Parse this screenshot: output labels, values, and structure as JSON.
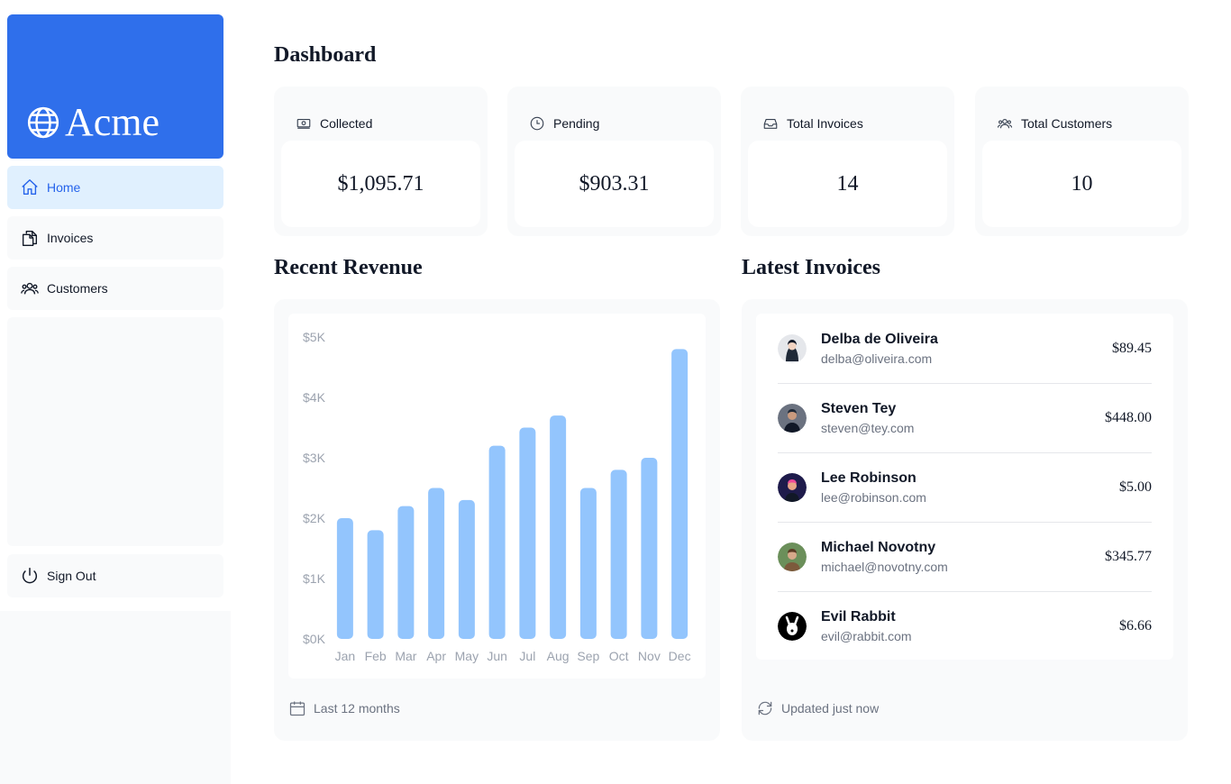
{
  "brand": {
    "name": "Acme",
    "color": "#2f6feb"
  },
  "nav": {
    "items": [
      {
        "label": "Home",
        "icon": "home-icon",
        "active": true
      },
      {
        "label": "Invoices",
        "icon": "document-duplicate-icon",
        "active": false
      },
      {
        "label": "Customers",
        "icon": "user-group-icon",
        "active": false
      }
    ],
    "sign_out": "Sign Out"
  },
  "page": {
    "title": "Dashboard"
  },
  "cards": [
    {
      "title": "Collected",
      "icon": "banknotes-icon",
      "value": "$1,095.71"
    },
    {
      "title": "Pending",
      "icon": "clock-icon",
      "value": "$903.31"
    },
    {
      "title": "Total Invoices",
      "icon": "inbox-icon",
      "value": "14"
    },
    {
      "title": "Total Customers",
      "icon": "user-group-icon",
      "value": "10"
    }
  ],
  "revenue": {
    "title": "Recent Revenue",
    "footer": "Last 12 months"
  },
  "chart_data": {
    "type": "bar",
    "categories": [
      "Jan",
      "Feb",
      "Mar",
      "Apr",
      "May",
      "Jun",
      "Jul",
      "Aug",
      "Sep",
      "Oct",
      "Nov",
      "Dec"
    ],
    "values": [
      2000,
      1800,
      2200,
      2500,
      2300,
      3200,
      3500,
      3700,
      2500,
      2800,
      3000,
      4800
    ],
    "y_ticks": [
      "$5K",
      "$4K",
      "$3K",
      "$2K",
      "$1K",
      "$0K"
    ],
    "ylim": [
      0,
      5000
    ],
    "bar_color": "#93c5fd",
    "grid": false
  },
  "latest_invoices": {
    "title": "Latest Invoices",
    "footer": "Updated just now",
    "rows": [
      {
        "name": "Delba de Oliveira",
        "email": "delba@oliveira.com",
        "amount": "$89.45"
      },
      {
        "name": "Steven Tey",
        "email": "steven@tey.com",
        "amount": "$448.00"
      },
      {
        "name": "Lee Robinson",
        "email": "lee@robinson.com",
        "amount": "$5.00"
      },
      {
        "name": "Michael Novotny",
        "email": "michael@novotny.com",
        "amount": "$345.77"
      },
      {
        "name": "Evil Rabbit",
        "email": "evil@rabbit.com",
        "amount": "$6.66"
      }
    ]
  }
}
